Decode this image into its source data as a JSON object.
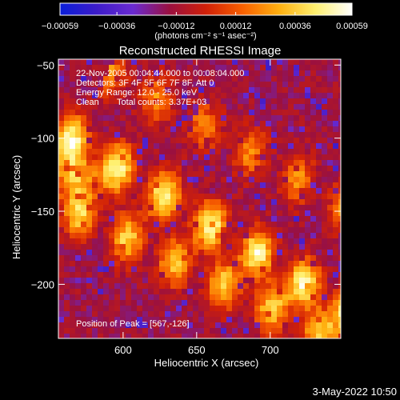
{
  "chart_data": {
    "type": "heatmap",
    "title": "Reconstructed RHESSI Image",
    "xlabel": "Heliocentric X (arcsec)",
    "ylabel": "Heliocentric Y (arcsec)",
    "xlim": [
      556,
      748
    ],
    "ylim": [
      -237,
      -46
    ],
    "x_ticks": [
      600,
      650,
      700
    ],
    "x_tick_labels": [
      "600",
      "650",
      "700"
    ],
    "y_ticks": [
      -50,
      -100,
      -150,
      -200
    ],
    "y_tick_labels": [
      "−50",
      "−100",
      "−150",
      "−200"
    ],
    "colorbar": {
      "range": [
        -0.00059,
        0.00059
      ],
      "ticks": [
        -0.00059,
        -0.00036,
        -0.00012,
        0.00012,
        0.00036,
        0.00059
      ],
      "tick_labels": [
        "−0.00059",
        "−0.00036",
        "−0.00012",
        "0.00012",
        "0.00036",
        "0.00059"
      ],
      "unit_text": "(photons cm⁻² s⁻¹ asec⁻²)",
      "colors": [
        "#0a1ed8",
        "#3c1cc8",
        "#6a2ad0",
        "#9a1040",
        "#d02008",
        "#f86000",
        "#ffb010",
        "#fff070",
        "#ffffff"
      ]
    },
    "annotations": [
      "22-Nov-2005 00:04:44.000 to 00:08:04.000",
      "Detectors: 3F 4F 5F 6F 7F 8F, Att 0",
      "Energy Range: 12.0 - 25.0 keV",
      "Clean",
      "Total counts: 3.37E+03"
    ],
    "peak": {
      "label": "Position of Peak = [567,-126]",
      "x": 567,
      "y": -126
    },
    "bright_bands": [
      {
        "x": [
          556,
          748
        ],
        "y": [
          -95,
          -215
        ],
        "peak_fraction": 1.0
      },
      {
        "x": [
          565,
          745
        ],
        "y": [
          -150,
          -238
        ],
        "peak_fraction": 0.8
      },
      {
        "x": [
          600,
          748
        ],
        "y": [
          -60,
          -145
        ],
        "peak_fraction": 0.55
      }
    ]
  },
  "timestamp": "3-May-2022 10:50"
}
